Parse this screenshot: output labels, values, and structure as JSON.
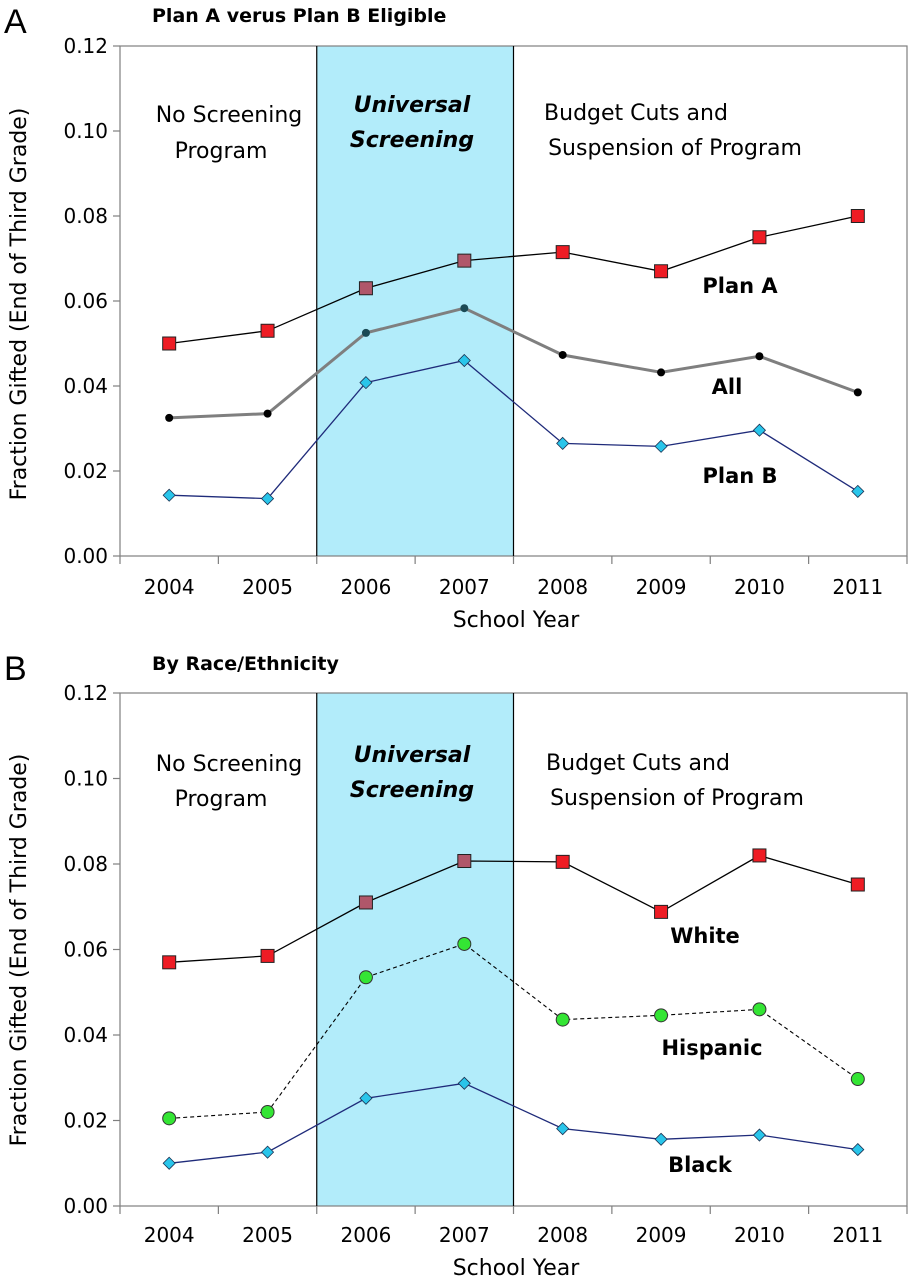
{
  "panels": [
    {
      "letter": "A",
      "title": "Plan A verus Plan B Eligible",
      "regions": {
        "left": [
          "No Screening",
          "Program"
        ],
        "middle": [
          "Universal",
          "Screening"
        ],
        "right": [
          "Budget Cuts and",
          "Suspension of Program"
        ]
      }
    },
    {
      "letter": "B",
      "title": "By Race/Ethnicity",
      "regions": {
        "left": [
          "No Screening",
          "Program"
        ],
        "middle": [
          "Universal",
          "Screening"
        ],
        "right": [
          "Budget Cuts and",
          "Suspension of Program"
        ]
      }
    }
  ],
  "colors": {
    "shade": "#b2ecfa",
    "red_marker": "#ee1c24",
    "mauve_marker": "#b0576a",
    "diamond": "#29c5ea",
    "green_marker": "#34e534",
    "navy_line": "#1f2b7a",
    "gray_line": "#7f7f7f"
  },
  "chart_data": [
    {
      "type": "line",
      "title": "Plan A verus Plan B Eligible",
      "xlabel": "School Year",
      "ylabel": "Fraction Gifted (End of Third Grade)",
      "categories": [
        "2004",
        "2005",
        "2006",
        "2007",
        "2008",
        "2009",
        "2010",
        "2011"
      ],
      "ylim": [
        0,
        0.12
      ],
      "yticks": [
        "0.00",
        "0.02",
        "0.04",
        "0.06",
        "0.08",
        "0.10",
        "0.12"
      ],
      "shaded_range": [
        "2006",
        "2007"
      ],
      "series": [
        {
          "name": "Plan A",
          "values": [
            0.05,
            0.053,
            0.063,
            0.0695,
            0.0715,
            0.067,
            0.075,
            0.08
          ]
        },
        {
          "name": "All",
          "values": [
            0.0325,
            0.0335,
            0.0525,
            0.0583,
            0.0473,
            0.0432,
            0.047,
            0.0385
          ]
        },
        {
          "name": "Plan B",
          "values": [
            0.0143,
            0.0135,
            0.0408,
            0.046,
            0.0265,
            0.0258,
            0.0296,
            0.0152
          ]
        }
      ]
    },
    {
      "type": "line",
      "title": "By Race/Ethnicity",
      "xlabel": "School Year",
      "ylabel": "Fraction Gifted (End of Third Grade)",
      "categories": [
        "2004",
        "2005",
        "2006",
        "2007",
        "2008",
        "2009",
        "2010",
        "2011"
      ],
      "ylim": [
        0,
        0.12
      ],
      "yticks": [
        "0.00",
        "0.02",
        "0.04",
        "0.06",
        "0.08",
        "0.10",
        "0.12"
      ],
      "shaded_range": [
        "2006",
        "2007"
      ],
      "series": [
        {
          "name": "White",
          "values": [
            0.057,
            0.0585,
            0.071,
            0.0807,
            0.0805,
            0.0688,
            0.082,
            0.0752
          ]
        },
        {
          "name": "Hispanic",
          "values": [
            0.0205,
            0.022,
            0.0535,
            0.0613,
            0.0436,
            0.0446,
            0.046,
            0.0297
          ]
        },
        {
          "name": "Black",
          "values": [
            0.01,
            0.0126,
            0.0252,
            0.0287,
            0.0181,
            0.0156,
            0.0166,
            0.0132
          ]
        }
      ]
    }
  ]
}
